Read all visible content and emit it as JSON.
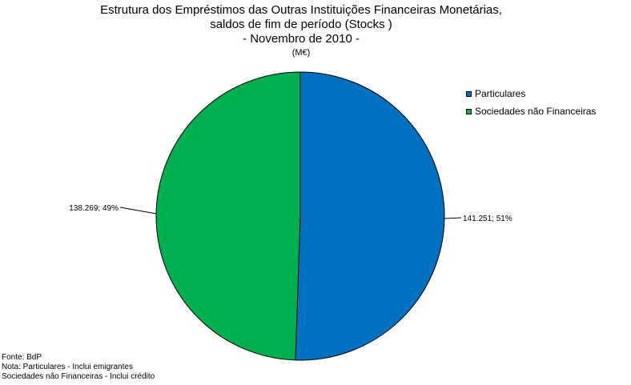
{
  "chart_data": {
    "type": "pie",
    "title_lines": [
      "Estrutura dos Empréstimos das Outras Instituições Financeiras Monetárias,",
      "saldos de fim de período (Stocks )",
      "- Novembro de 2010 -"
    ],
    "unit": "(M€)",
    "slices": [
      {
        "name": "Particulares",
        "value": 141.251,
        "percent": 51,
        "label": "141.251; 51%",
        "color": "#0070C0"
      },
      {
        "name": "Sociedades não Financeiras",
        "value": 138.269,
        "percent": 49,
        "label": "138.269; 49%",
        "color": "#00B050"
      }
    ],
    "legend_position": "right"
  },
  "footer": {
    "source": "Fonte: BdP",
    "note1": "Nota: Particulares - Inclui emigrantes",
    "note2": "Sociedades não Financeiras - Inclui crédito"
  }
}
